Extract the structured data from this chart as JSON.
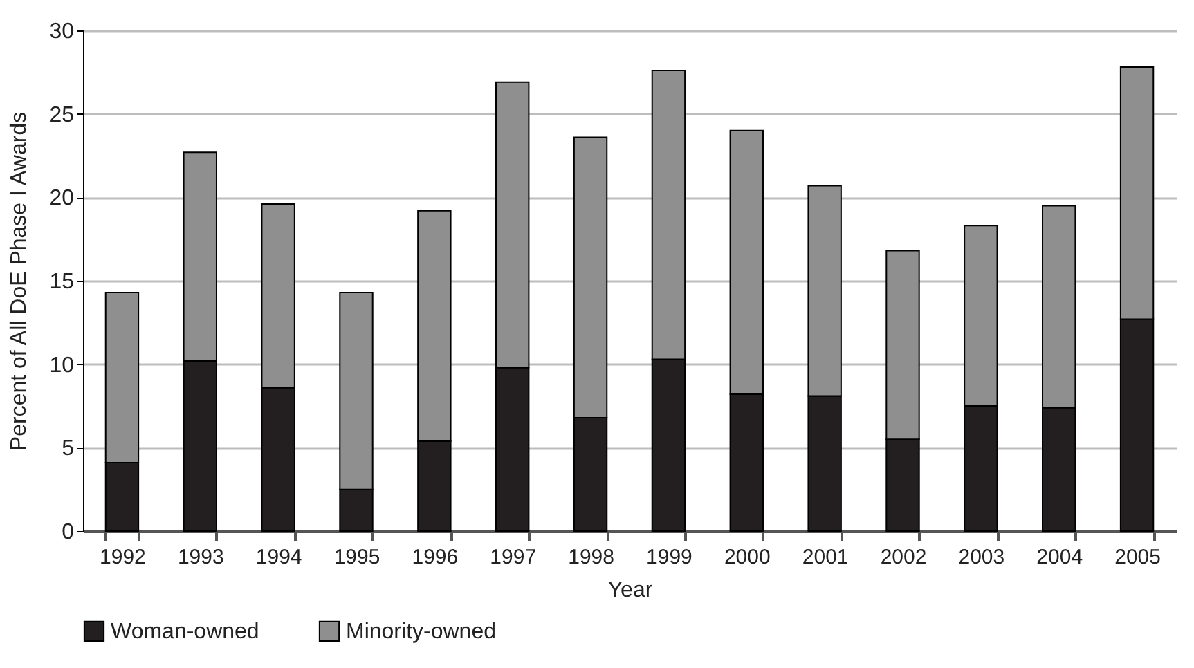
{
  "chart_data": {
    "type": "bar",
    "stacked": true,
    "xlabel": "Year",
    "ylabel": "Percent of All DoE Phase I Awards",
    "categories": [
      "1992",
      "1993",
      "1994",
      "1995",
      "1996",
      "1997",
      "1998",
      "1999",
      "2000",
      "2001",
      "2002",
      "2003",
      "2004",
      "2005"
    ],
    "series": [
      {
        "name": "Woman-owned",
        "color": "#231f20",
        "values": [
          4.1,
          10.2,
          8.6,
          2.5,
          5.4,
          9.8,
          6.8,
          10.3,
          8.2,
          8.1,
          5.5,
          7.5,
          7.4,
          12.7
        ]
      },
      {
        "name": "Minority-owned",
        "color": "#8f8f8f",
        "values": [
          10.2,
          12.5,
          11.0,
          11.8,
          13.8,
          17.1,
          16.8,
          17.3,
          15.8,
          12.6,
          11.3,
          10.8,
          12.1,
          15.1
        ]
      }
    ],
    "ylim": [
      0,
      30
    ],
    "yticks": [
      0,
      5,
      10,
      15,
      20,
      25,
      30
    ],
    "grid": "y",
    "legend": "bottom"
  }
}
